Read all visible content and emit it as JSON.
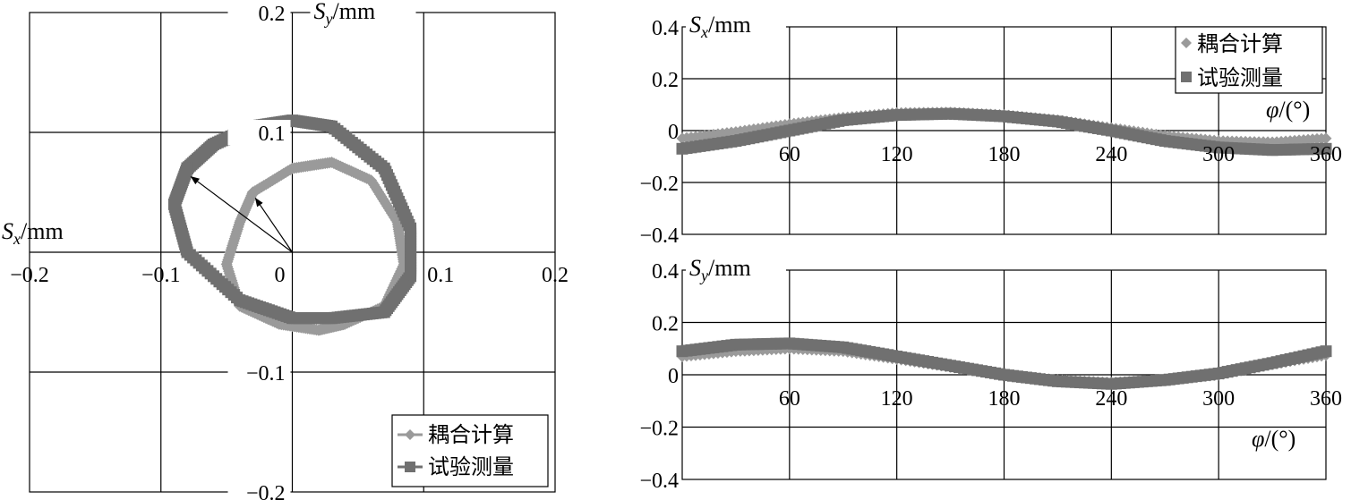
{
  "legend": [
    "耦合计算",
    "试验测量"
  ],
  "colors": {
    "coupled": "#9a9a9a",
    "measured": "#707070"
  },
  "chart_data": [
    {
      "type": "scatter",
      "name": "orbit",
      "xlabel": "Sx/mm",
      "ylabel": "Sy/mm",
      "xlim": [
        -0.2,
        0.2
      ],
      "ylim": [
        -0.2,
        0.2
      ],
      "xticks": [
        "−0.2",
        "−0.1",
        "0",
        "0.1",
        "0.2"
      ],
      "yticks": [
        "0.2",
        "0.1",
        "−0.1",
        "−0.2"
      ],
      "grid": true,
      "legend_position": "bottom-right",
      "series": [
        {
          "name": "耦合计算",
          "marker": "diamond",
          "x": [
            -0.03,
            0.0,
            0.03,
            0.06,
            0.08,
            0.085,
            0.07,
            0.04,
            0.02,
            -0.01,
            -0.04,
            -0.05,
            -0.04,
            -0.03
          ],
          "y": [
            0.05,
            0.07,
            0.075,
            0.06,
            0.025,
            -0.01,
            -0.045,
            -0.06,
            -0.065,
            -0.06,
            -0.045,
            -0.01,
            0.025,
            0.05
          ]
        },
        {
          "name": "试验测量",
          "marker": "square",
          "x": [
            -0.08,
            -0.06,
            -0.03,
            0.0,
            0.03,
            0.07,
            0.09,
            0.09,
            0.07,
            0.03,
            0.0,
            -0.04,
            -0.08,
            -0.09,
            -0.08
          ],
          "y": [
            0.07,
            0.09,
            0.105,
            0.11,
            0.105,
            0.07,
            0.02,
            -0.02,
            -0.05,
            -0.055,
            -0.055,
            -0.04,
            0.0,
            0.04,
            0.07
          ]
        }
      ],
      "annotations": [
        {
          "from": [
            0,
            0
          ],
          "to": [
            -0.077,
            0.063
          ]
        },
        {
          "from": [
            0,
            0
          ],
          "to": [
            -0.028,
            0.045
          ]
        }
      ]
    },
    {
      "type": "scatter",
      "name": "sx-vs-phi",
      "ylabel": "Sx/mm",
      "xlabel": "φ/(°)",
      "xlim": [
        0,
        360
      ],
      "ylim": [
        -0.4,
        0.4
      ],
      "xticks": [
        "60",
        "120",
        "180",
        "240",
        "300",
        "360"
      ],
      "yticks": [
        "0.4",
        "0.2",
        "0",
        "−0.2",
        "−0.4"
      ],
      "grid": true,
      "legend_position": "top-right",
      "series": [
        {
          "name": "耦合计算",
          "marker": "diamond",
          "x": [
            0,
            30,
            60,
            90,
            120,
            150,
            180,
            210,
            240,
            270,
            300,
            330,
            360
          ],
          "y": [
            -0.03,
            -0.005,
            0.025,
            0.05,
            0.068,
            0.07,
            0.06,
            0.04,
            0.01,
            -0.02,
            -0.04,
            -0.045,
            -0.03
          ]
        },
        {
          "name": "试验测量",
          "marker": "square",
          "x": [
            0,
            30,
            60,
            90,
            120,
            150,
            180,
            210,
            240,
            270,
            300,
            330,
            360
          ],
          "y": [
            -0.07,
            -0.04,
            0.0,
            0.04,
            0.06,
            0.065,
            0.055,
            0.035,
            0.0,
            -0.04,
            -0.065,
            -0.075,
            -0.07
          ]
        }
      ]
    },
    {
      "type": "scatter",
      "name": "sy-vs-phi",
      "ylabel": "Sy/mm",
      "xlabel": "φ/(°)",
      "xlim": [
        0,
        360
      ],
      "ylim": [
        -0.4,
        0.4
      ],
      "xticks": [
        "60",
        "120",
        "180",
        "240",
        "300",
        "360"
      ],
      "yticks": [
        "0.4",
        "0.2",
        "0",
        "−0.2",
        "−0.4"
      ],
      "grid": true,
      "series": [
        {
          "name": "耦合计算",
          "marker": "diamond",
          "x": [
            0,
            30,
            60,
            90,
            120,
            150,
            180,
            210,
            240,
            270,
            300,
            330,
            360
          ],
          "y": [
            0.07,
            0.09,
            0.1,
            0.09,
            0.06,
            0.03,
            0.0,
            -0.02,
            -0.03,
            -0.02,
            0.0,
            0.04,
            0.075
          ]
        },
        {
          "name": "试验测量",
          "marker": "square",
          "x": [
            0,
            30,
            60,
            90,
            120,
            150,
            180,
            210,
            240,
            270,
            300,
            330,
            360
          ],
          "y": [
            0.09,
            0.115,
            0.12,
            0.105,
            0.07,
            0.035,
            0.0,
            -0.025,
            -0.035,
            -0.02,
            0.005,
            0.045,
            0.09
          ]
        }
      ]
    }
  ]
}
